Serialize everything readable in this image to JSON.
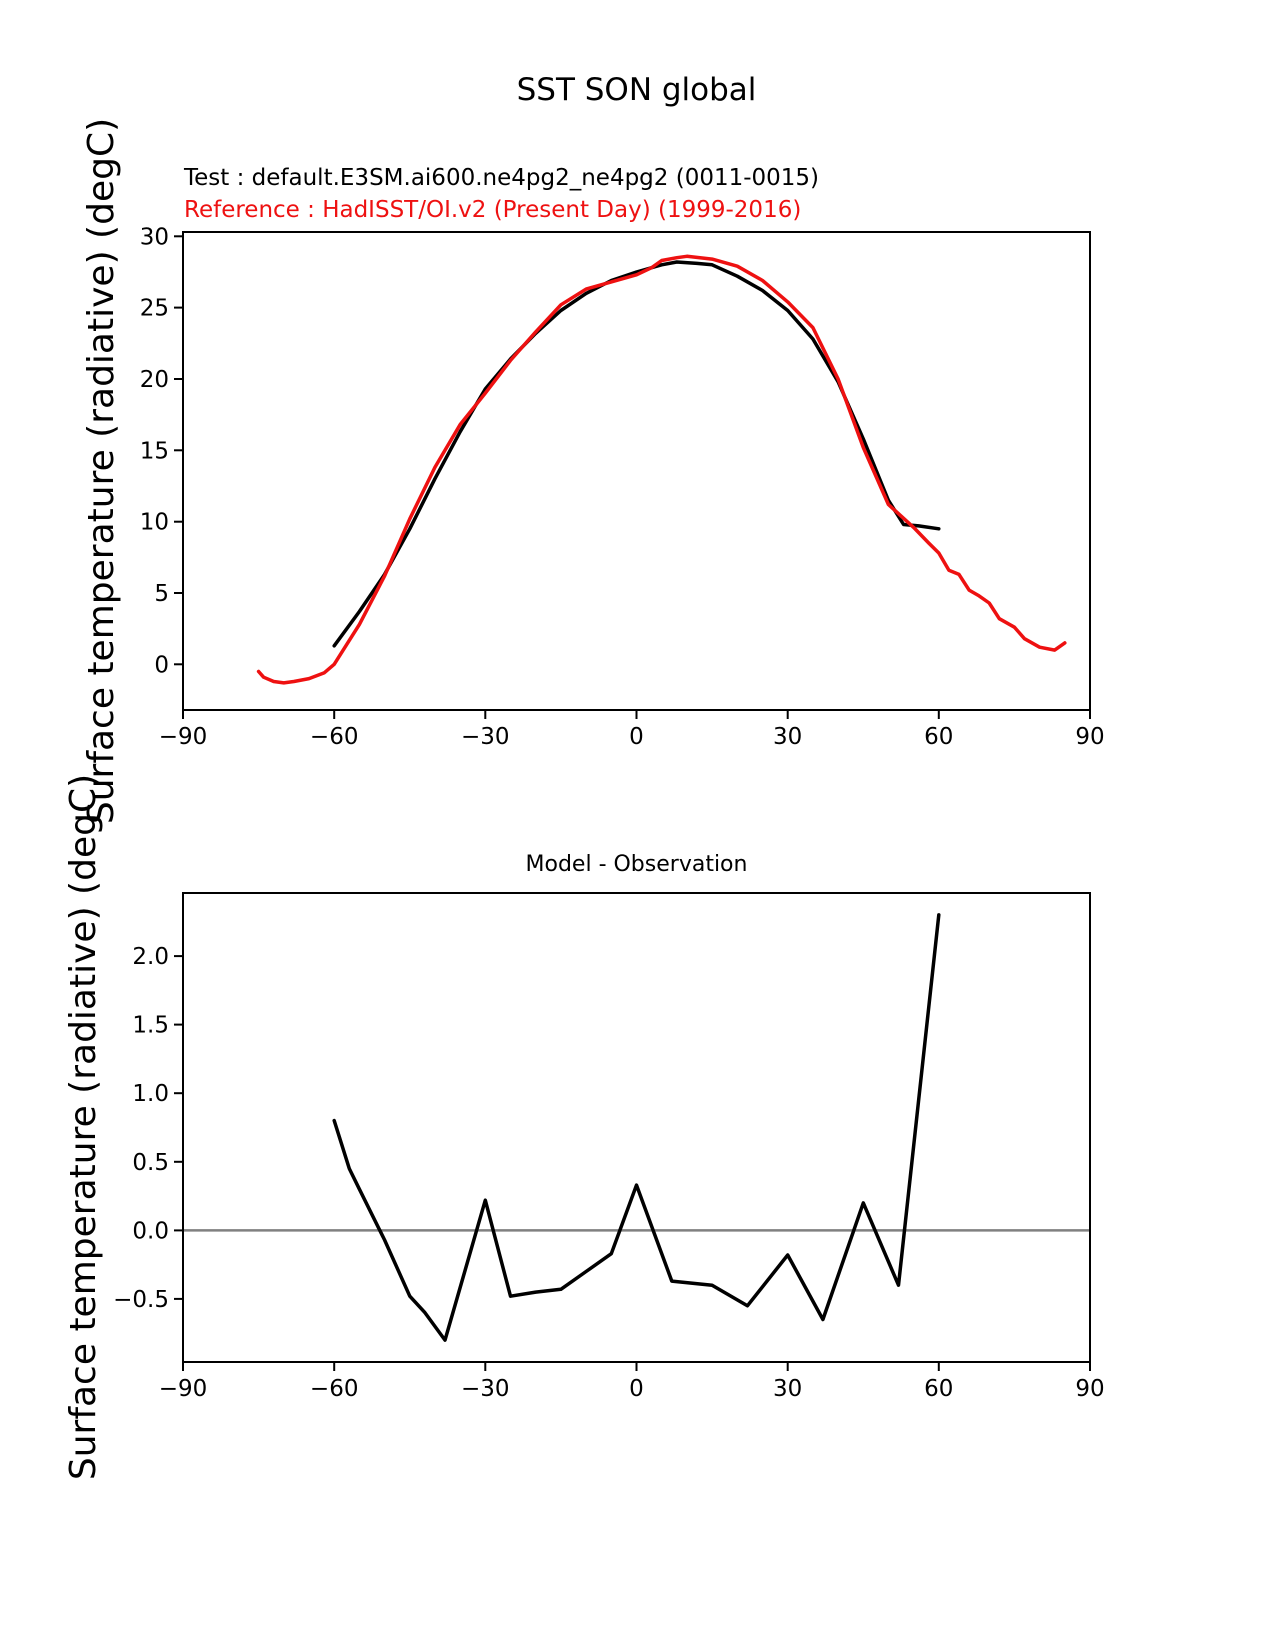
{
  "figure": {
    "title": "SST SON global",
    "legend": {
      "test": "Test : default.E3SM.ai600.ne4pg2_ne4pg2 (0011-0015)",
      "reference": "Reference : HadISST/OI.v2 (Present Day) (1999-2016)"
    },
    "colors": {
      "test": "#000000",
      "reference": "#ee1111",
      "zero_line": "#808080"
    }
  },
  "chart_data": [
    {
      "type": "line",
      "title": "SST SON global",
      "xlabel": "",
      "ylabel": "Surface temperature (radiative) (degC)",
      "xlim": [
        -90,
        90
      ],
      "ylim": [
        -3.2,
        30.3
      ],
      "grid": false,
      "legend_position": "above-left",
      "xtick_values": [
        -90,
        -60,
        -30,
        0,
        30,
        60,
        90
      ],
      "xtick_labels": [
        "−90",
        "−60",
        "−30",
        "0",
        "30",
        "60",
        "90"
      ],
      "ytick_values": [
        0,
        5,
        10,
        15,
        20,
        25,
        30
      ],
      "ytick_labels": [
        "0",
        "5",
        "10",
        "15",
        "20",
        "25",
        "30"
      ],
      "zero_line": false,
      "series": [
        {
          "name": "Test : default.E3SM.ai600.ne4pg2_ne4pg2 (0011-0015)",
          "color": "#000000",
          "x": [
            -60,
            -55,
            -50,
            -45,
            -40,
            -35,
            -30,
            -25,
            -20,
            -15,
            -10,
            -5,
            0,
            5,
            8,
            12,
            15,
            20,
            25,
            30,
            35,
            40,
            45,
            50,
            53,
            56,
            60
          ],
          "y": [
            1.3,
            3.7,
            6.3,
            9.5,
            13.0,
            16.3,
            19.3,
            21.4,
            23.2,
            24.8,
            26.0,
            26.9,
            27.5,
            28.0,
            28.2,
            28.1,
            28.0,
            27.2,
            26.2,
            24.8,
            22.8,
            19.8,
            15.8,
            11.5,
            9.8,
            9.7,
            9.5
          ]
        },
        {
          "name": "Reference : HadISST/OI.v2 (Present Day) (1999-2016)",
          "color": "#ee1111",
          "x": [
            -75,
            -74,
            -72,
            -70,
            -68,
            -65,
            -62,
            -60,
            -55,
            -50,
            -45,
            -40,
            -35,
            -30,
            -25,
            -20,
            -15,
            -10,
            -5,
            0,
            3,
            5,
            8,
            10,
            15,
            20,
            25,
            30,
            35,
            40,
            45,
            50,
            55,
            58,
            60,
            62,
            64,
            66,
            68,
            70,
            72,
            75,
            77,
            80,
            83,
            85
          ],
          "y": [
            -0.5,
            -0.9,
            -1.2,
            -1.3,
            -1.2,
            -1.0,
            -0.6,
            0.0,
            2.8,
            6.2,
            10.2,
            13.8,
            16.8,
            19.0,
            21.3,
            23.3,
            25.2,
            26.3,
            26.8,
            27.3,
            27.8,
            28.3,
            28.5,
            28.6,
            28.4,
            27.9,
            26.9,
            25.4,
            23.6,
            20.0,
            15.2,
            11.2,
            9.6,
            8.5,
            7.8,
            6.6,
            6.3,
            5.2,
            4.8,
            4.3,
            3.2,
            2.6,
            1.8,
            1.2,
            1.0,
            1.5
          ]
        }
      ]
    },
    {
      "type": "line",
      "title": "Model - Observation",
      "xlabel": "",
      "ylabel": "Surface temperature (radiative) (degC)",
      "xlim": [
        -90,
        90
      ],
      "ylim": [
        -0.96,
        2.46
      ],
      "grid": false,
      "xtick_values": [
        -90,
        -60,
        -30,
        0,
        30,
        60,
        90
      ],
      "xtick_labels": [
        "−90",
        "−60",
        "−30",
        "0",
        "30",
        "60",
        "90"
      ],
      "ytick_values": [
        -0.5,
        0.0,
        0.5,
        1.0,
        1.5,
        2.0
      ],
      "ytick_labels": [
        "−0.5",
        "0.0",
        "0.5",
        "1.0",
        "1.5",
        "2.0"
      ],
      "zero_line": true,
      "series": [
        {
          "name": "Model - Observation",
          "color": "#000000",
          "x": [
            -60,
            -57,
            -55,
            -50,
            -45,
            -42,
            -38,
            -30,
            -25,
            -20,
            -15,
            -10,
            -5,
            0,
            7,
            15,
            22,
            30,
            37,
            45,
            52,
            60
          ],
          "y": [
            0.8,
            0.45,
            0.3,
            -0.07,
            -0.48,
            -0.6,
            -0.8,
            0.22,
            -0.48,
            -0.45,
            -0.43,
            -0.3,
            -0.17,
            0.33,
            -0.37,
            -0.4,
            -0.55,
            -0.18,
            -0.65,
            0.2,
            -0.4,
            2.3
          ]
        }
      ]
    }
  ]
}
